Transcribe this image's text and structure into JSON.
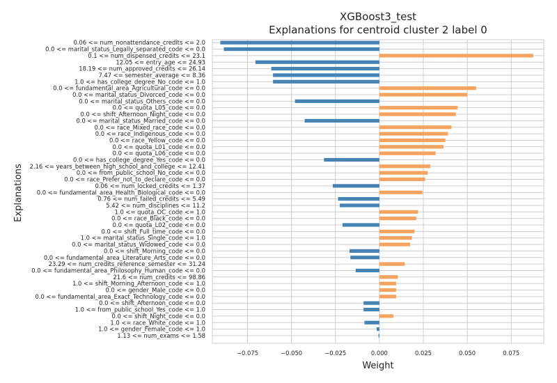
{
  "chart_data": {
    "type": "bar",
    "orientation": "horizontal",
    "title_line1": "XGBoost3_test",
    "title_line2": "Explanations for centroid cluster 2 label 0",
    "xlabel": "Weight",
    "ylabel": "Explanations",
    "xlim": [
      -0.095,
      0.0935
    ],
    "xticks": [
      -0.075,
      -0.05,
      -0.025,
      0.0,
      0.025,
      0.05,
      0.075
    ],
    "xtick_labels": [
      "−0.075",
      "−0.050",
      "−0.025",
      "0.000",
      "0.025",
      "0.050",
      "0.075"
    ],
    "grid": true,
    "colors": {
      "negative": "#4682b4",
      "positive": "#f4a460"
    },
    "categories": [
      "0.06 <= num_nonattendance_credits <= 2.0",
      "0.0 <= marital_status_Legally_separated_code <= 0.0",
      "0.1 <= num_dispensed_credits <= 23.1",
      "12.05 <= entry_age <= 24.93",
      "18.19 <= num_approved_credits <= 26.14",
      "7.47 <= semester_average <= 8.36",
      "1.0 <= has_college_degree_No_code <= 1.0",
      "0.0 <= fundamental_area_Agricultural_code <= 0.0",
      "0.0 <= marital_status_Divorced_code <= 0.0",
      "0.0 <= marital_status_Others_code <= 0.0",
      "0.0 <= quota_L05_code <= 0.0",
      "0.0 <= shift_Afternoon_Night_code <= 0.0",
      "0.0 <= marital_status_Married_code <= 0.0",
      "0.0 <= race_Mixed_race_code <= 0.0",
      "0.0 <= race_Indigenous_code <= 0.0",
      "0.0 <= race_Yellow_code <= 0.0",
      "0.0 <= quota_L01_code <= 0.0",
      "0.0 <= quota_L06_code <= 0.0",
      "0.0 <= has_college_degree_Yes_code <= 0.0",
      "2.16 <= years_between_high_school_and_college <= 12.41",
      "0.0 <= from_public_school_No_code <= 0.0",
      "0.0 <= race_Prefer_not_to_declare_code <= 0.0",
      "0.06 <= num_locked_credits <= 1.37",
      "0.0 <= fundamental_area_Health_Biological_code <= 0.0",
      "0.76 <= num_failed_credits <= 5.49",
      "5.42 <= num_disciplines <= 11.2",
      "1.0 <= quota_OC_code <= 1.0",
      "0.0 <= race_Black_code <= 0.0",
      "0.0 <= quota_L02_code <= 0.0",
      "0.0 <= shift_Full_time_code <= 0.0",
      "1.0 <= marital_status_Single_code <= 1.0",
      "0.0 <= marital_status_Widowed_code <= 0.0",
      "0.0 <= shift_Morning_code <= 0.0",
      "0.0 <= fundamental_area_Literature_Arts_code <= 0.0",
      "23.29 <= num_credits_reference_semester <= 31.24",
      "0.0 <= fundamental_area_Philosophy_Human_code <= 0.0",
      "21.6 <= num_credits <= 98.86",
      "1.0 <= shift_Morning_Afternoon_code <= 1.0",
      "0.0 <= gender_Male_code <= 0.0",
      "0.0 <= fundamental_area_Exact_Technology_code <= 0.0",
      "0.0 <= shift_Afternoon_code <= 0.0",
      "1.0 <= from_public_school_Yes_code <= 1.0",
      "0.0 <= shift_Night_code <= 0.0",
      "1.0 <= race_White_code <= 1.0",
      "1.0 <= gender_Female_code <= 1.0",
      "1.13 <= num_exams <= 1.58"
    ],
    "values": [
      -0.0905,
      -0.0885,
      0.0875,
      -0.0705,
      -0.0615,
      -0.0605,
      -0.0605,
      0.055,
      0.05,
      -0.048,
      0.0445,
      0.0435,
      -0.0425,
      0.041,
      0.039,
      0.0375,
      0.0365,
      0.032,
      -0.0315,
      0.029,
      0.0275,
      0.026,
      -0.0265,
      0.0245,
      -0.0235,
      -0.0225,
      0.022,
      0.021,
      -0.021,
      0.02,
      0.0185,
      0.0175,
      -0.017,
      -0.0165,
      0.0145,
      -0.0135,
      0.0105,
      0.0095,
      0.0095,
      0.0095,
      -0.009,
      -0.009,
      0.008,
      -0.0085,
      -0.0015,
      -0.0005
    ]
  }
}
